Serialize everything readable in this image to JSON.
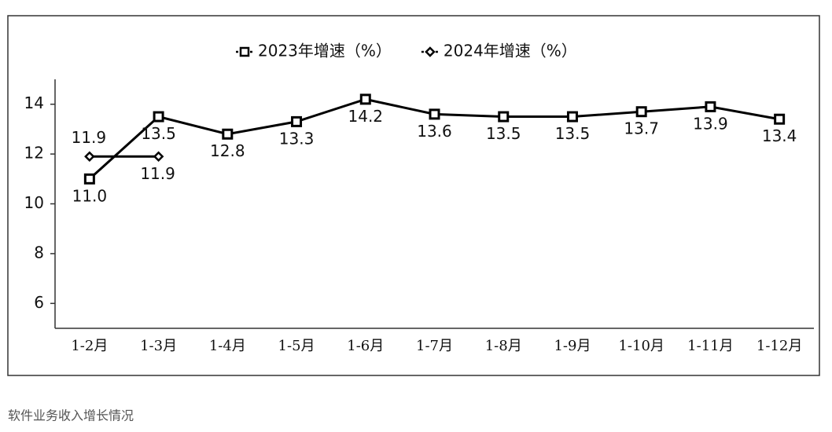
{
  "chart_data": {
    "type": "line",
    "categories": [
      "1-2月",
      "1-3月",
      "1-4月",
      "1-5月",
      "1-6月",
      "1-7月",
      "1-8月",
      "1-9月",
      "1-10月",
      "1-11月",
      "1-12月"
    ],
    "series": [
      {
        "name": "2023年增速（%）",
        "color": "#000000",
        "marker": "square",
        "values": [
          11.0,
          13.5,
          12.8,
          13.3,
          14.2,
          13.6,
          13.5,
          13.5,
          13.7,
          13.9,
          13.4
        ],
        "value_labels": [
          "11.0",
          "13.5",
          "12.8",
          "13.3",
          "14.2",
          "13.6",
          "13.5",
          "13.5",
          "13.7",
          "13.9",
          "13.4"
        ]
      },
      {
        "name": "2024年增速（%）",
        "color": "#000000",
        "marker": "diamond",
        "values": [
          11.9,
          11.9,
          null,
          null,
          null,
          null,
          null,
          null,
          null,
          null,
          null
        ],
        "value_labels": [
          "11.9",
          "11.9",
          null,
          null,
          null,
          null,
          null,
          null,
          null,
          null,
          null
        ]
      }
    ],
    "ylim": [
      5,
      15
    ],
    "yticks": [
      6,
      8,
      10,
      12,
      14
    ],
    "grid": false,
    "legend": "top",
    "caption": "软件业务收入增长情况"
  }
}
